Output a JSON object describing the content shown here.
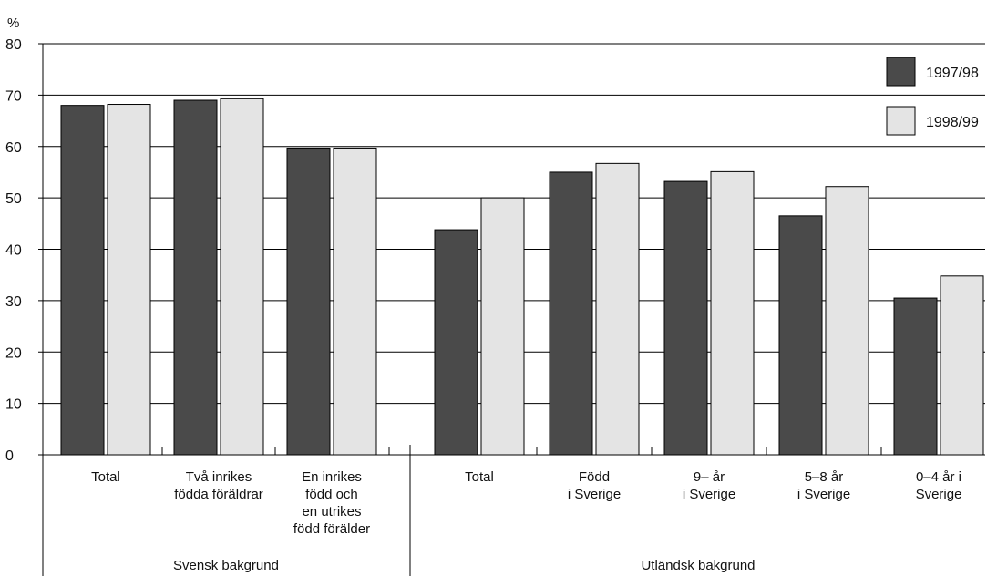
{
  "chart_data": {
    "type": "bar",
    "unit": "%",
    "ylim": [
      0,
      80
    ],
    "yticks": [
      "0",
      "10",
      "20",
      "30",
      "40",
      "50",
      "60",
      "70",
      "80"
    ],
    "grid": true,
    "legend_position": "top-right",
    "categories": [
      [
        "Total"
      ],
      [
        "Två inrikes",
        "födda föräldrar"
      ],
      [
        "En inrikes",
        "född och",
        "en utrikes",
        "född förälder"
      ],
      [
        "Total"
      ],
      [
        "Född",
        "i Sverige"
      ],
      [
        "9– år",
        "i Sverige"
      ],
      [
        "5–8 år",
        "i Sverige"
      ],
      [
        "0–4 år i",
        "Sverige"
      ]
    ],
    "groups": [
      {
        "label": "Svensk bakgrund",
        "categories": 3
      },
      {
        "label": "Utländsk bakgrund",
        "categories": 5
      }
    ],
    "series": [
      {
        "name": "1997/98",
        "color": "#4a4a4a",
        "values": [
          68,
          69,
          59.7,
          43.8,
          55,
          53.2,
          46.5,
          30.5
        ]
      },
      {
        "name": "1998/99",
        "color": "#e4e4e4",
        "values": [
          68.2,
          69.3,
          59.7,
          50,
          56.7,
          55.1,
          52.2,
          34.8
        ]
      }
    ]
  }
}
